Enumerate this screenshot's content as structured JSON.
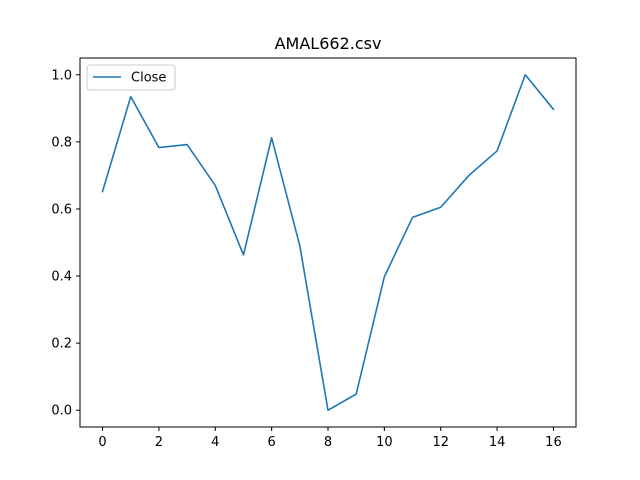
{
  "chart_data": {
    "type": "line",
    "title": "AMAL662.csv",
    "xlabel": "",
    "ylabel": "",
    "xlim": [
      -0.8,
      16.8
    ],
    "ylim": [
      -0.05,
      1.05
    ],
    "xticks": [
      0,
      2,
      4,
      6,
      8,
      10,
      12,
      14,
      16
    ],
    "yticks": [
      0.0,
      0.2,
      0.4,
      0.6,
      0.8,
      1.0
    ],
    "xtick_labels": [
      "0",
      "2",
      "4",
      "6",
      "8",
      "10",
      "12",
      "14",
      "16"
    ],
    "ytick_labels": [
      "0.0",
      "0.2",
      "0.4",
      "0.6",
      "0.8",
      "1.0"
    ],
    "grid": false,
    "legend_position": "top-left",
    "x": [
      0,
      1,
      2,
      3,
      4,
      5,
      6,
      7,
      8,
      9,
      10,
      11,
      12,
      13,
      14,
      15,
      16
    ],
    "series": [
      {
        "name": "Close",
        "color": "#1f77b4",
        "values": [
          0.652,
          0.935,
          0.783,
          0.792,
          0.67,
          0.463,
          0.812,
          0.49,
          0.0,
          0.048,
          0.398,
          0.575,
          0.605,
          0.7,
          0.773,
          1.0,
          0.897
        ]
      }
    ]
  }
}
